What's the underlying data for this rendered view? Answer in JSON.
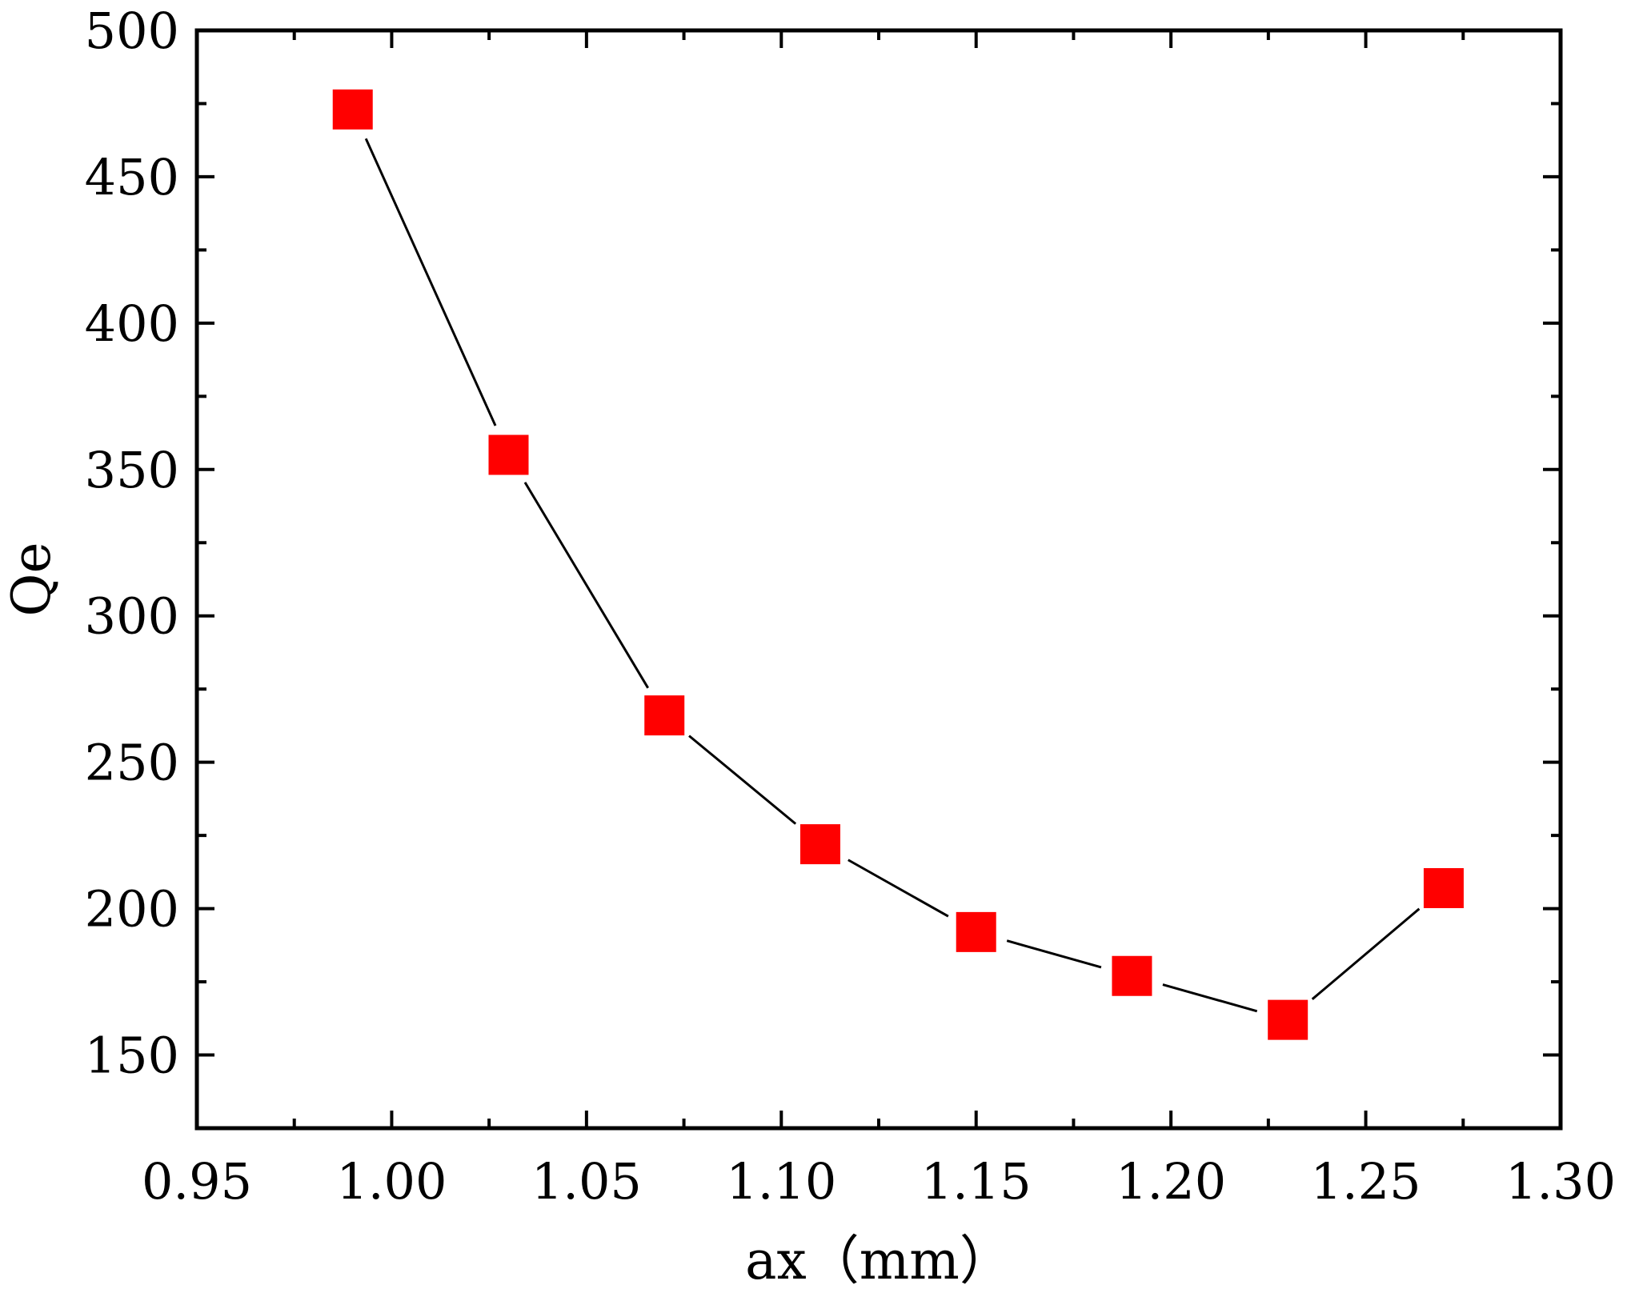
{
  "chart_data": {
    "type": "line",
    "title": "",
    "xlabel": "ax（mm）",
    "ylabel": "Qe",
    "xlim": [
      0.95,
      1.3
    ],
    "ylim": [
      125,
      500
    ],
    "xticks": [
      "0.95",
      "1.00",
      "1.05",
      "1.10",
      "1.15",
      "1.20",
      "1.25",
      "1.30"
    ],
    "yticks": [
      "150",
      "200",
      "250",
      "300",
      "350",
      "400",
      "450",
      "500"
    ],
    "grid": false,
    "legend": "none",
    "series": [
      {
        "x": [
          0.99,
          1.03,
          1.07,
          1.11,
          1.15,
          1.19,
          1.23,
          1.27
        ],
        "y": [
          473,
          355,
          266,
          222,
          192,
          177,
          162,
          207
        ],
        "marker": "square",
        "marker_color": "#ff0000",
        "line_color": "#000000"
      }
    ]
  }
}
